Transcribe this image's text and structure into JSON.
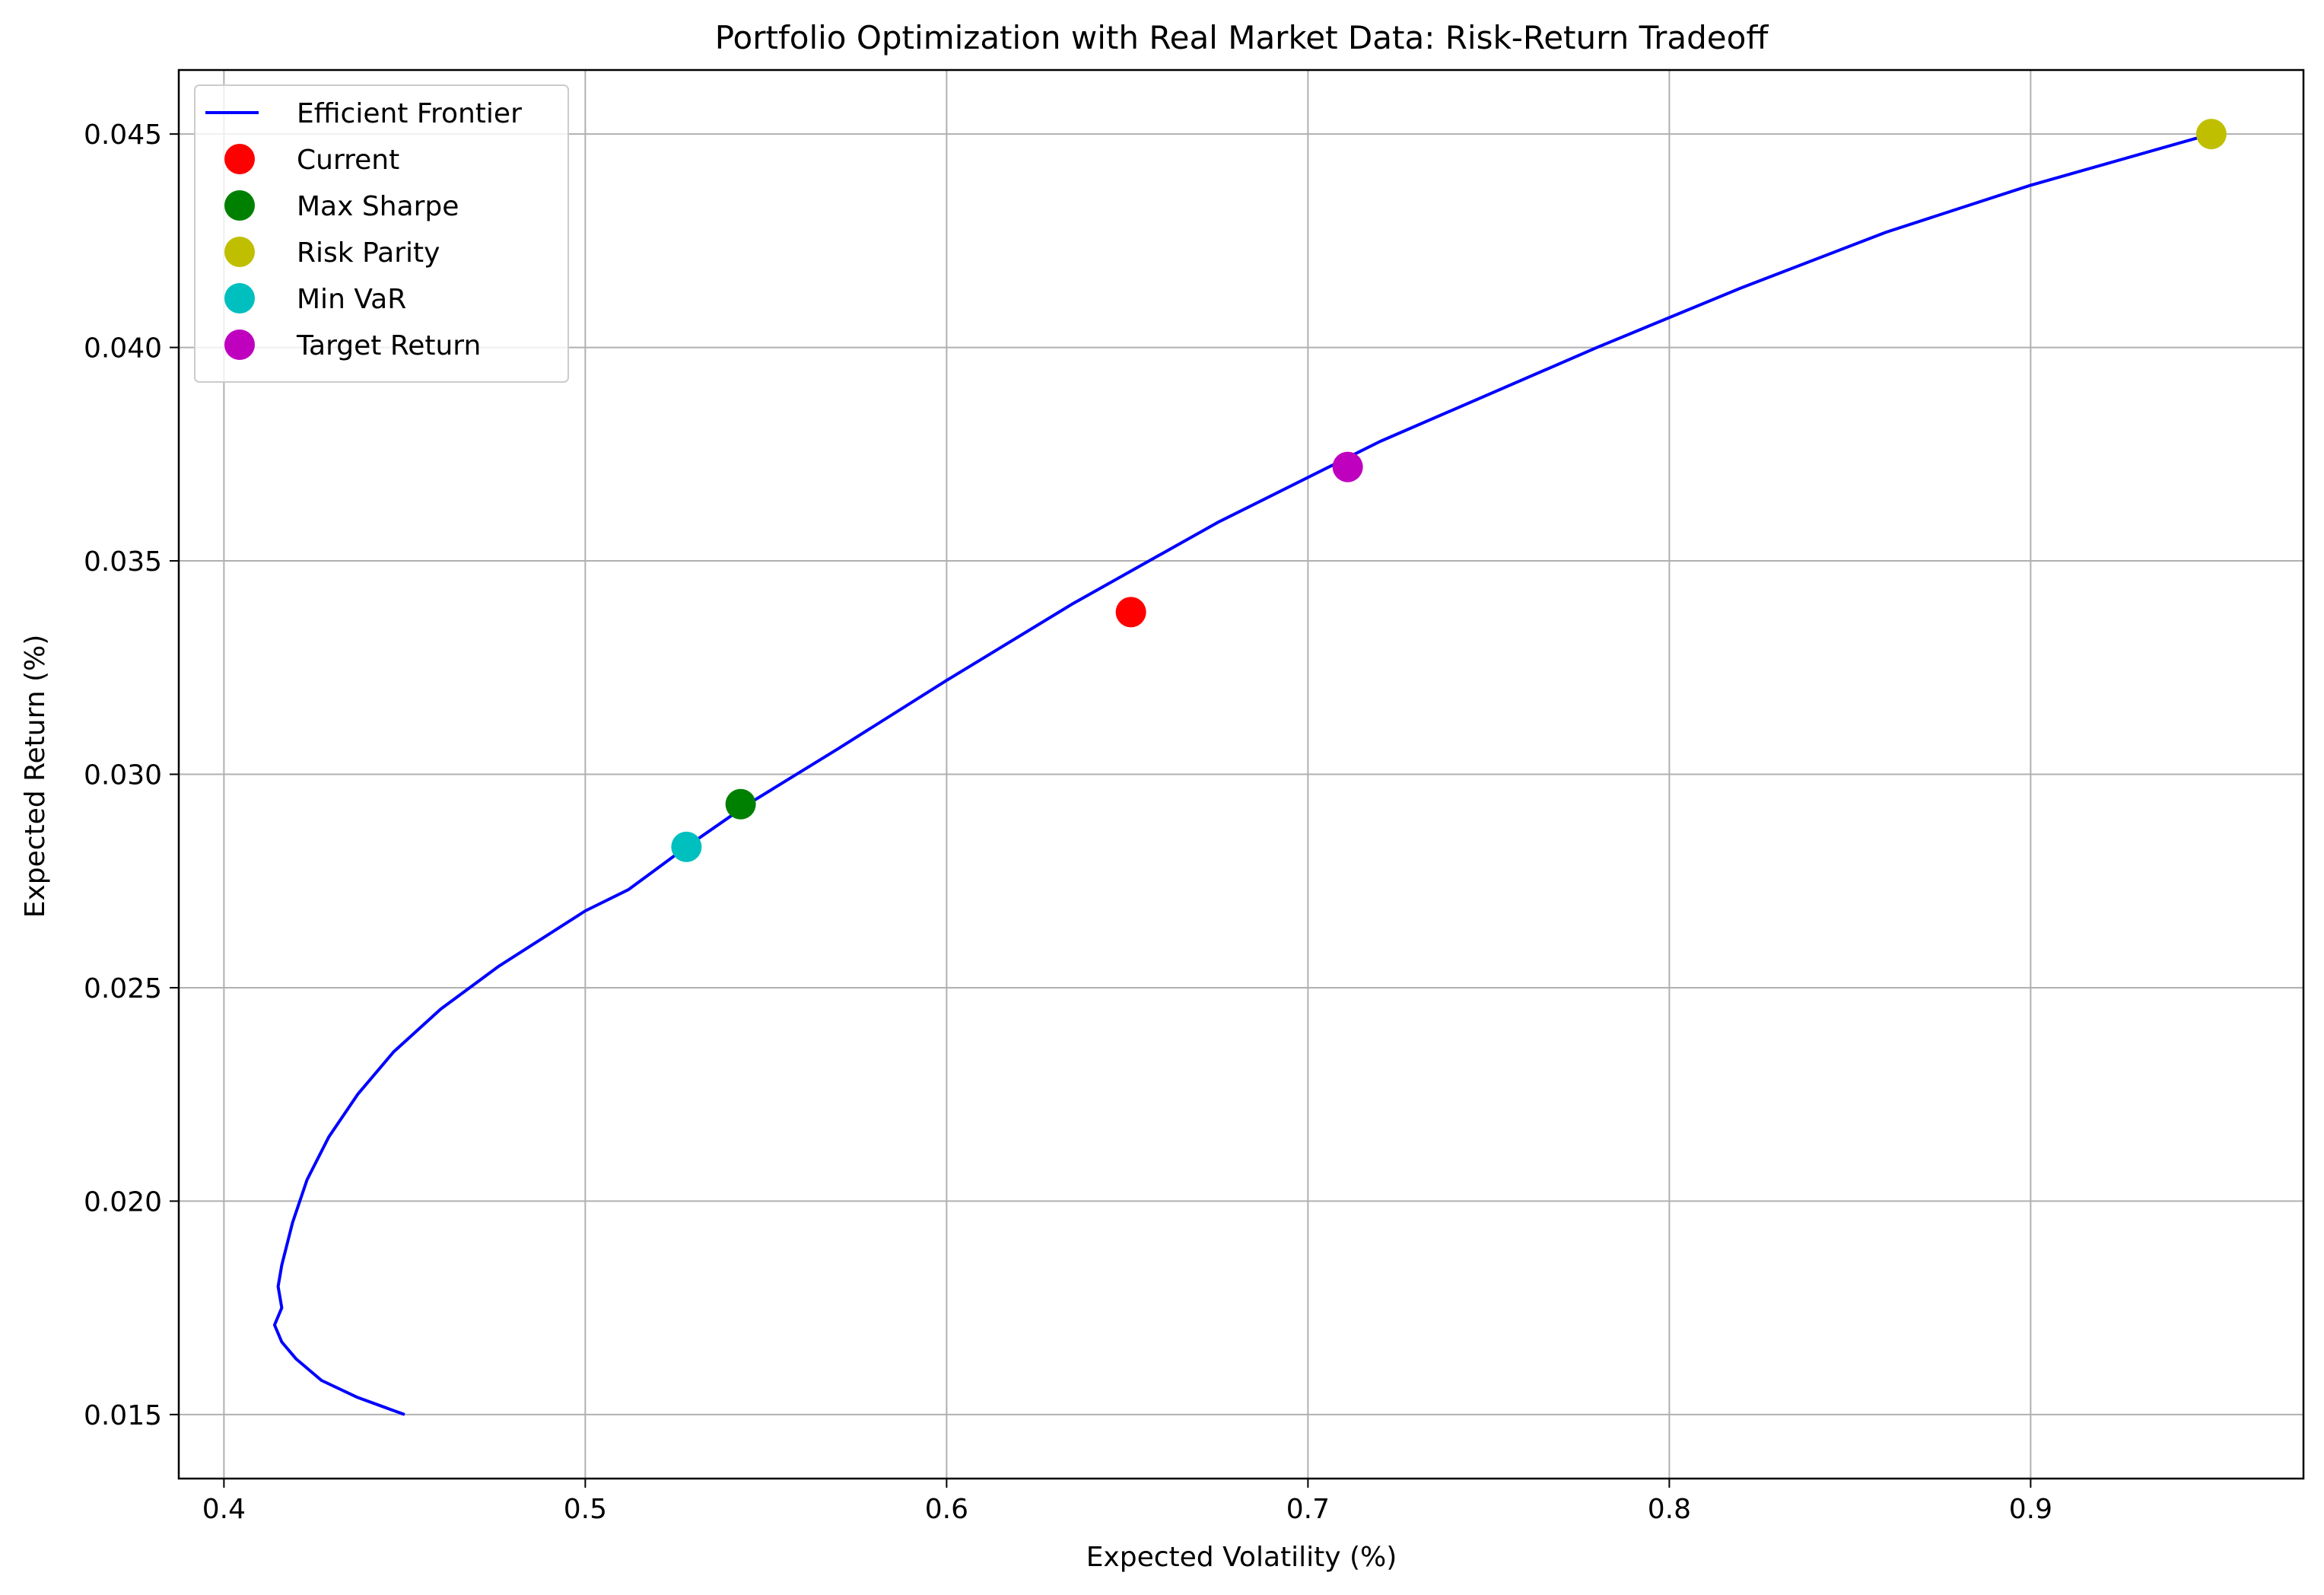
{
  "chart_data": {
    "type": "line",
    "title": "Portfolio Optimization with Real Market Data: Risk-Return Tradeoff",
    "xlabel": "Expected Volatility (%)",
    "ylabel": "Expected Return (%)",
    "xlim": [
      0.3875,
      0.9755
    ],
    "ylim": [
      0.0135,
      0.0465
    ],
    "xticks": [
      0.4,
      0.5,
      0.6,
      0.7,
      0.8,
      0.9
    ],
    "xtick_labels": [
      "0.4",
      "0.5",
      "0.6",
      "0.7",
      "0.8",
      "0.9"
    ],
    "yticks": [
      0.015,
      0.02,
      0.025,
      0.03,
      0.035,
      0.04,
      0.045
    ],
    "ytick_labels": [
      "0.015",
      "0.020",
      "0.025",
      "0.030",
      "0.035",
      "0.040",
      "0.045"
    ],
    "grid": true,
    "legend_position": "upper-left",
    "frontier": {
      "name": "Efficient Frontier",
      "color": "#0000ff",
      "x": [
        0.45,
        0.437,
        0.427,
        0.42,
        0.416,
        0.414,
        0.416,
        0.415,
        0.416,
        0.419,
        0.423,
        0.429,
        0.437,
        0.447,
        0.46,
        0.476,
        0.5,
        0.512,
        0.528,
        0.545,
        0.57,
        0.6,
        0.635,
        0.675,
        0.72,
        0.78,
        0.82,
        0.86,
        0.9,
        0.95
      ],
      "y": [
        0.015,
        0.0154,
        0.0158,
        0.0163,
        0.0167,
        0.0171,
        0.0175,
        0.018,
        0.0185,
        0.0195,
        0.0205,
        0.0215,
        0.0225,
        0.0235,
        0.0245,
        0.0255,
        0.0268,
        0.0273,
        0.0283,
        0.0293,
        0.0306,
        0.0322,
        0.034,
        0.0359,
        0.0378,
        0.04,
        0.0414,
        0.0427,
        0.0438,
        0.045
      ]
    },
    "points": [
      {
        "name": "Current",
        "x": 0.651,
        "y": 0.0338,
        "color": "#ff0000"
      },
      {
        "name": "Max Sharpe",
        "x": 0.543,
        "y": 0.0293,
        "color": "#008000"
      },
      {
        "name": "Risk Parity",
        "x": 0.95,
        "y": 0.045,
        "color": "#bfbf00"
      },
      {
        "name": "Min VaR",
        "x": 0.528,
        "y": 0.0283,
        "color": "#00bfbf"
      },
      {
        "name": "Target Return",
        "x": 0.711,
        "y": 0.0372,
        "color": "#bf00bf"
      }
    ]
  }
}
